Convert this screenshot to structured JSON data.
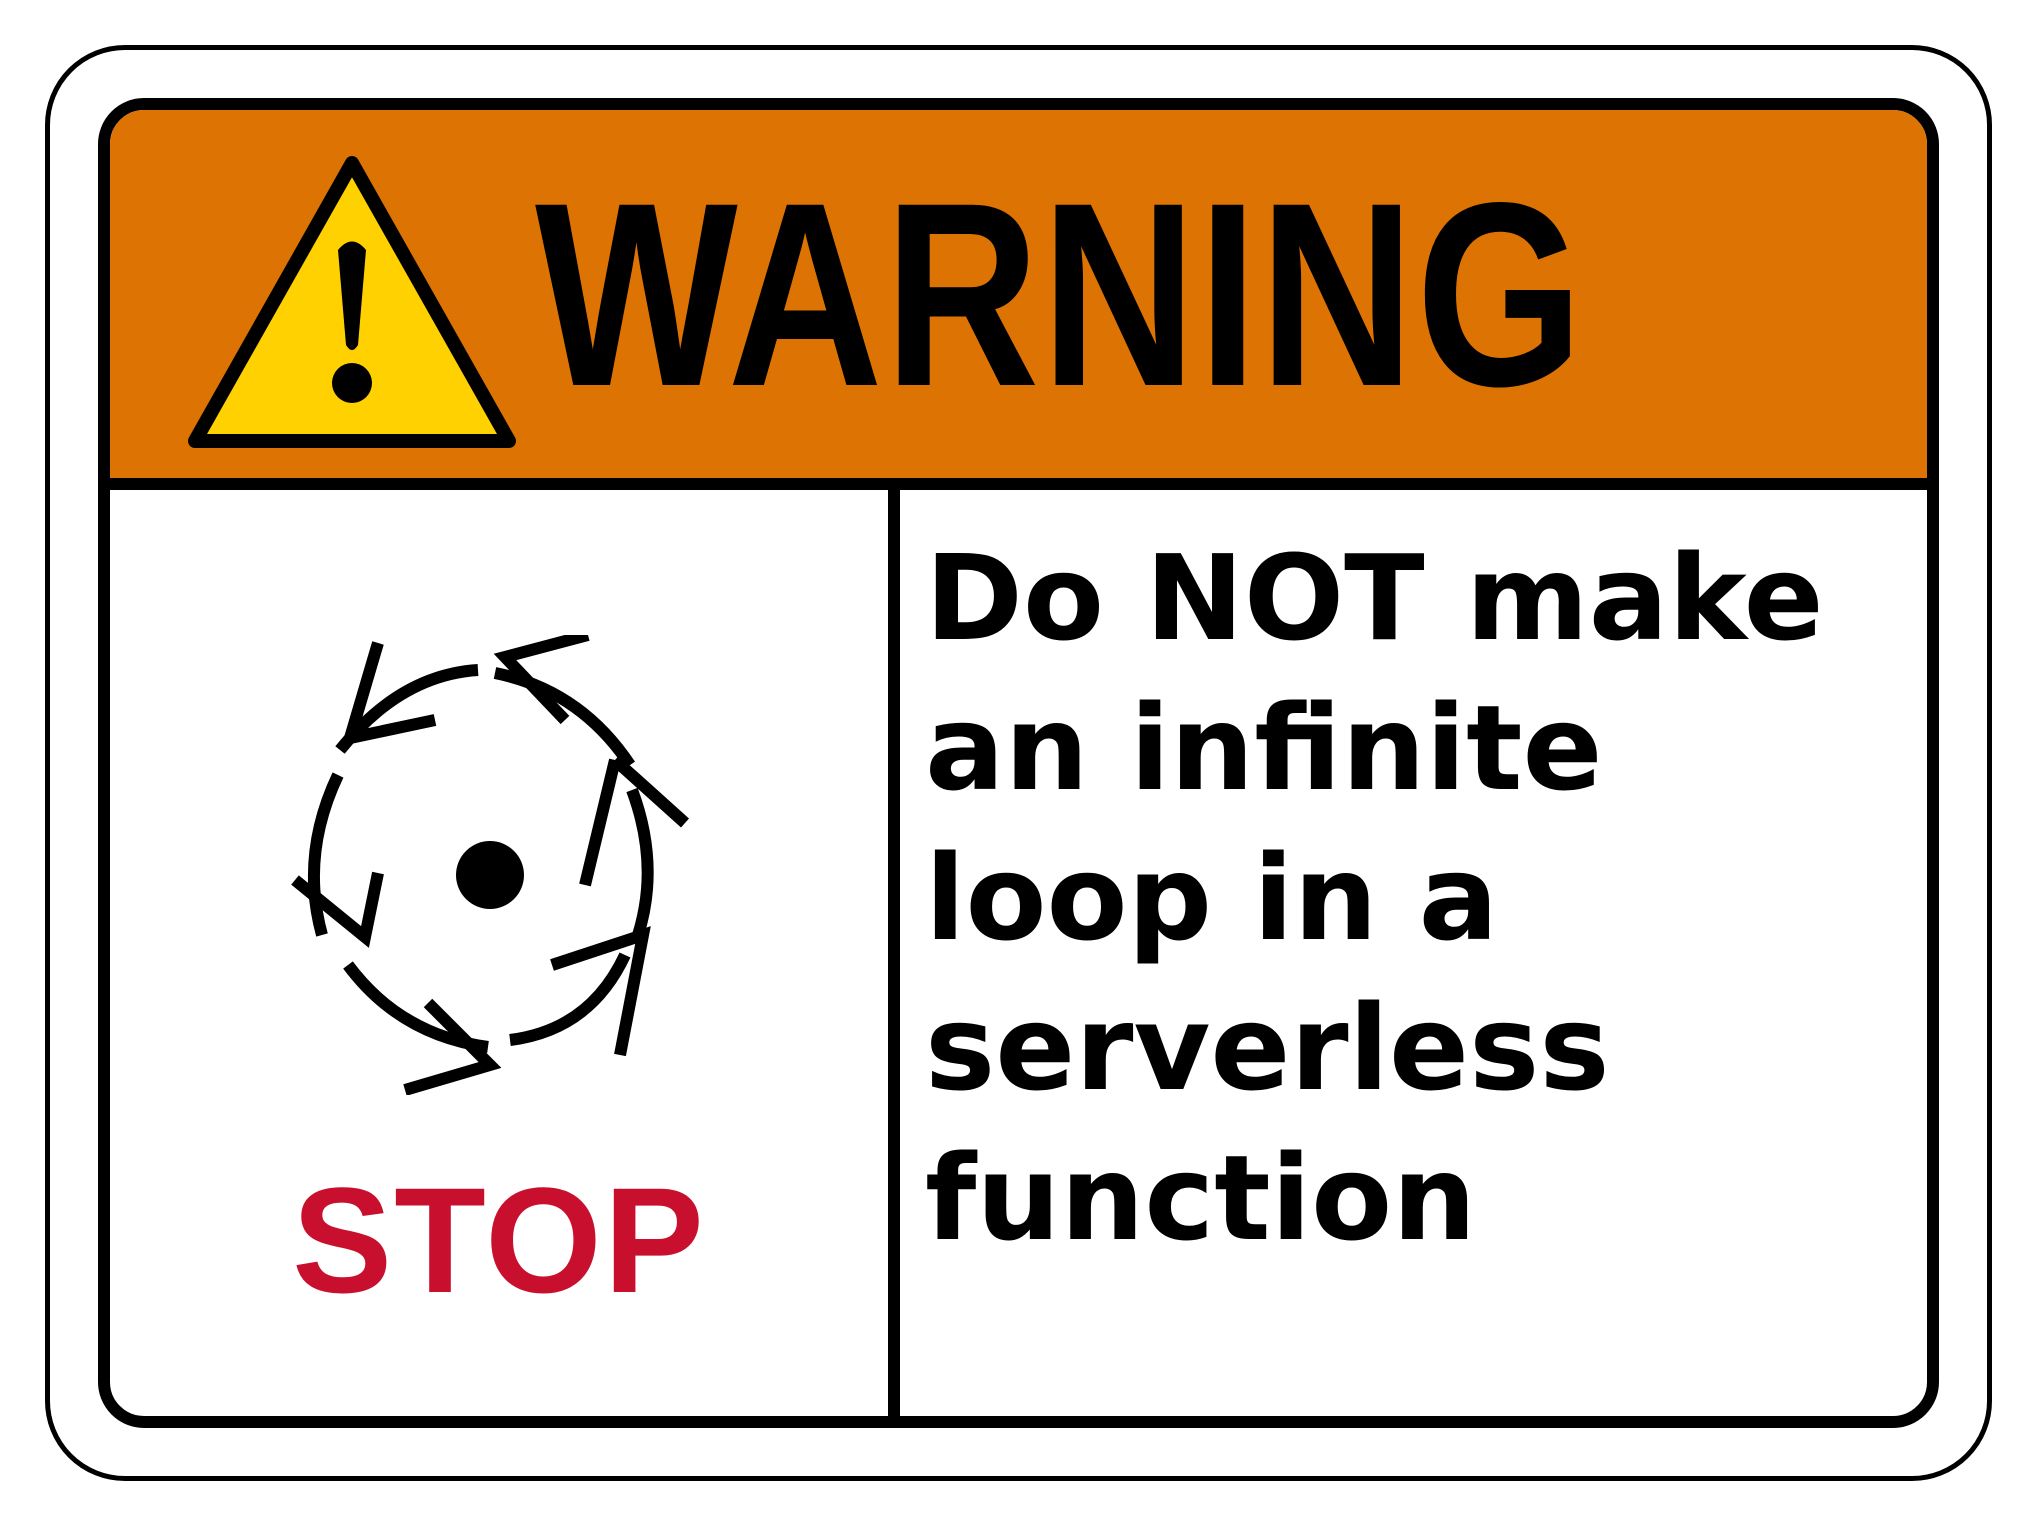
{
  "header": {
    "title": "WARNING",
    "background_color": "#dd7302",
    "icon": "warning-triangle-icon",
    "icon_color": "#ffd100"
  },
  "symbol": {
    "icon": "circular-arrows-loop-icon",
    "label": "STOP",
    "label_color": "#c8102e"
  },
  "message": {
    "lines": [
      "Do NOT make",
      "an infinite",
      "loop in a",
      "serverless",
      "function"
    ]
  }
}
